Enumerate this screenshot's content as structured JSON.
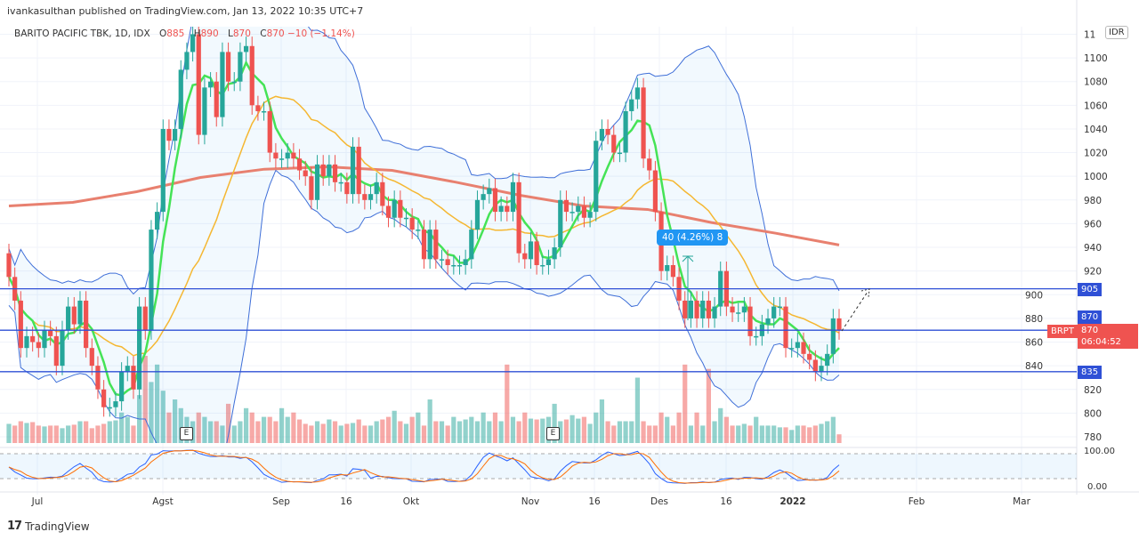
{
  "publisher": "ivankasulthan published on TradingView.com, Jan 13, 2022 10:35 UTC+7",
  "legend": {
    "symbol": "BARITO PACIFIC TBK, 1D, IDX",
    "o_label": "O",
    "o": "885",
    "h_label": "H",
    "h": "890",
    "l_label": "L",
    "l": "870",
    "c_label": "C",
    "c": "870",
    "change": "−10 (−1.14%)"
  },
  "currency": "IDR",
  "price_labels": {
    "level_905": "905",
    "level_870": "870",
    "ticker": "BRPT",
    "last_price": "870",
    "countdown": "06:04:52",
    "level_835": "835"
  },
  "measure_label": "40 (4.26%) 8",
  "earnings_marker": "E",
  "footer": {
    "brand": "TradingView"
  },
  "colors": {
    "up": "#26a69a",
    "down": "#ef5350",
    "ma_short": "#45e356",
    "ma_mid": "#f5b731",
    "ma_long": "#e8806f",
    "bands": "#3f6fd8",
    "hline": "#2f50d6"
  },
  "chart_data": {
    "type": "candlestick",
    "title": "BARITO PACIFIC TBK, 1D, IDX",
    "ylim": [
      770,
      1125
    ],
    "y_ticks": [
      "780",
      "800",
      "820",
      "840",
      "860",
      "880",
      "900",
      "920",
      "940",
      "960",
      "980",
      "1000",
      "1020",
      "1040",
      "1060",
      "1080",
      "1100",
      "11"
    ],
    "x_ticks": [
      "Jul",
      "Agst",
      "Sep",
      "16",
      "Okt",
      "Nov",
      "16",
      "Des",
      "16",
      "2022",
      "Feb",
      "Mar"
    ],
    "grid": true,
    "closes": [
      915,
      895,
      855,
      865,
      860,
      855,
      870,
      865,
      840,
      870,
      890,
      875,
      895,
      855,
      840,
      820,
      805,
      805,
      810,
      835,
      840,
      820,
      890,
      870,
      955,
      970,
      1040,
      1030,
      1040,
      1090,
      1105,
      1120,
      1035,
      1075,
      1080,
      1050,
      1105,
      1080,
      1080,
      1105,
      1110,
      1060,
      1055,
      1055,
      1020,
      1015,
      1015,
      1020,
      1015,
      1005,
      1000,
      980,
      1010,
      1000,
      1010,
      995,
      995,
      985,
      1025,
      985,
      980,
      985,
      995,
      975,
      965,
      980,
      965,
      965,
      955,
      955,
      930,
      955,
      930,
      930,
      925,
      925,
      925,
      930,
      955,
      980,
      985,
      990,
      970,
      975,
      970,
      995,
      935,
      930,
      945,
      925,
      925,
      930,
      940,
      980,
      970,
      970,
      975,
      965,
      970,
      1030,
      1040,
      1035,
      1020,
      1020,
      1055,
      1065,
      1075,
      1015,
      1005,
      970,
      920,
      925,
      915,
      895,
      880,
      895,
      880,
      895,
      880,
      890,
      920,
      890,
      885,
      885,
      890,
      865,
      865,
      875,
      880,
      890,
      890,
      855,
      855,
      860,
      850,
      845,
      835,
      840,
      850,
      880,
      870
    ],
    "volume_relative": [
      22,
      20,
      25,
      23,
      24,
      20,
      19,
      20,
      20,
      17,
      20,
      21,
      25,
      25,
      17,
      20,
      22,
      25,
      26,
      35,
      30,
      20,
      55,
      100,
      70,
      90,
      60,
      35,
      50,
      40,
      30,
      25,
      35,
      30,
      25,
      25,
      20,
      45,
      20,
      25,
      40,
      35,
      25,
      30,
      30,
      25,
      40,
      30,
      35,
      27,
      22,
      20,
      25,
      22,
      27,
      25,
      20,
      22,
      23,
      27,
      20,
      20,
      25,
      27,
      30,
      37,
      25,
      22,
      30,
      35,
      20,
      50,
      25,
      25,
      20,
      30,
      25,
      27,
      30,
      25,
      35,
      25,
      35,
      25,
      90,
      30,
      25,
      35,
      28,
      27,
      28,
      30,
      45,
      25,
      27,
      32,
      28,
      30,
      22,
      35,
      50,
      25,
      20,
      25,
      25,
      25,
      75,
      25,
      20,
      20,
      35,
      30,
      20,
      35,
      90,
      20,
      35,
      20,
      85,
      25,
      40,
      30,
      20,
      20,
      22,
      20,
      30,
      20,
      20,
      20,
      18,
      18,
      15,
      20,
      20,
      18,
      20,
      22,
      25,
      30,
      10
    ],
    "ma_long_samples": [
      975,
      978,
      987,
      999,
      1006,
      1008,
      1005,
      995,
      984,
      975,
      972,
      961,
      952,
      942
    ],
    "horizontal_levels": [
      905,
      870,
      835
    ],
    "indicators": [
      "MA short",
      "MA mid",
      "MA long",
      "Bollinger Bands",
      "Volume",
      "Stochastic"
    ],
    "stoch_axis": [
      "100.00",
      "0.00"
    ]
  }
}
